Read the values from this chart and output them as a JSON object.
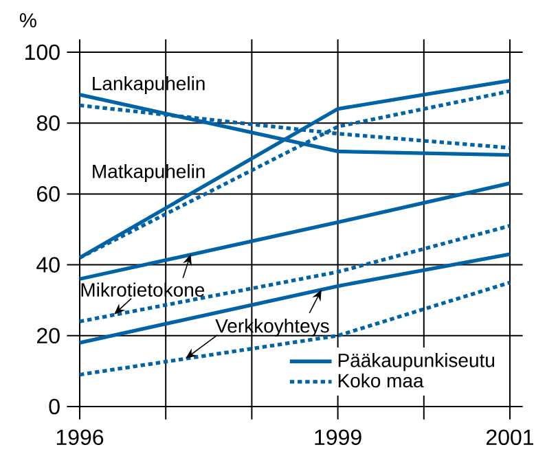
{
  "chart_data": {
    "type": "line",
    "ylabel": "%",
    "x": [
      1996,
      1999,
      2000,
      2001
    ],
    "xlim": [
      1996,
      2001
    ],
    "ylim": [
      0,
      100
    ],
    "xticks": [
      1996,
      {
        "value": 1997,
        "label": null
      },
      {
        "value": 1998,
        "label": null
      },
      1999,
      {
        "value": 2000,
        "label": null
      },
      2001
    ],
    "yticks": [
      0,
      20,
      40,
      60,
      80,
      100
    ],
    "grid": true,
    "legend": "bottom right",
    "marker": "none",
    "series": [
      {
        "name": "Pääkaupunkiseutu",
        "color": "#0063a6",
        "line_style": "solid",
        "values": [
          88,
          72,
          71.5,
          71
        ]
      },
      {
        "name": "Koko maa",
        "color": "#0063a6",
        "line_style": "dotted",
        "values": [
          85,
          77,
          75,
          73
        ]
      },
      {
        "color": "#0063a6",
        "line_style": "solid",
        "values": [
          42,
          84,
          88,
          92
        ]
      },
      {
        "color": "#0063a6",
        "line_style": "dotted",
        "values": [
          42,
          79,
          84,
          89
        ]
      },
      {
        "color": "#0063a6",
        "line_style": "solid",
        "values": [
          36,
          52,
          57.5,
          63
        ]
      },
      {
        "color": "#0063a6",
        "line_style": "dotted",
        "values": [
          24,
          38,
          44.5,
          51
        ]
      },
      {
        "color": "#0063a6",
        "line_style": "solid",
        "values": [
          18,
          34,
          38.5,
          43
        ]
      },
      {
        "color": "#0063a6",
        "line_style": "dotted",
        "values": [
          9,
          20,
          27.5,
          35
        ]
      }
    ],
    "annotations": [
      "Lankapuhelin",
      "Matkapuhelin",
      {
        "text": "Mikrotietokone",
        "x": 1997.29,
        "y": 43
      },
      {
        "text": "Verkkoyhteys",
        "x": 1997.23,
        "y": 13.5
      }
    ]
  }
}
